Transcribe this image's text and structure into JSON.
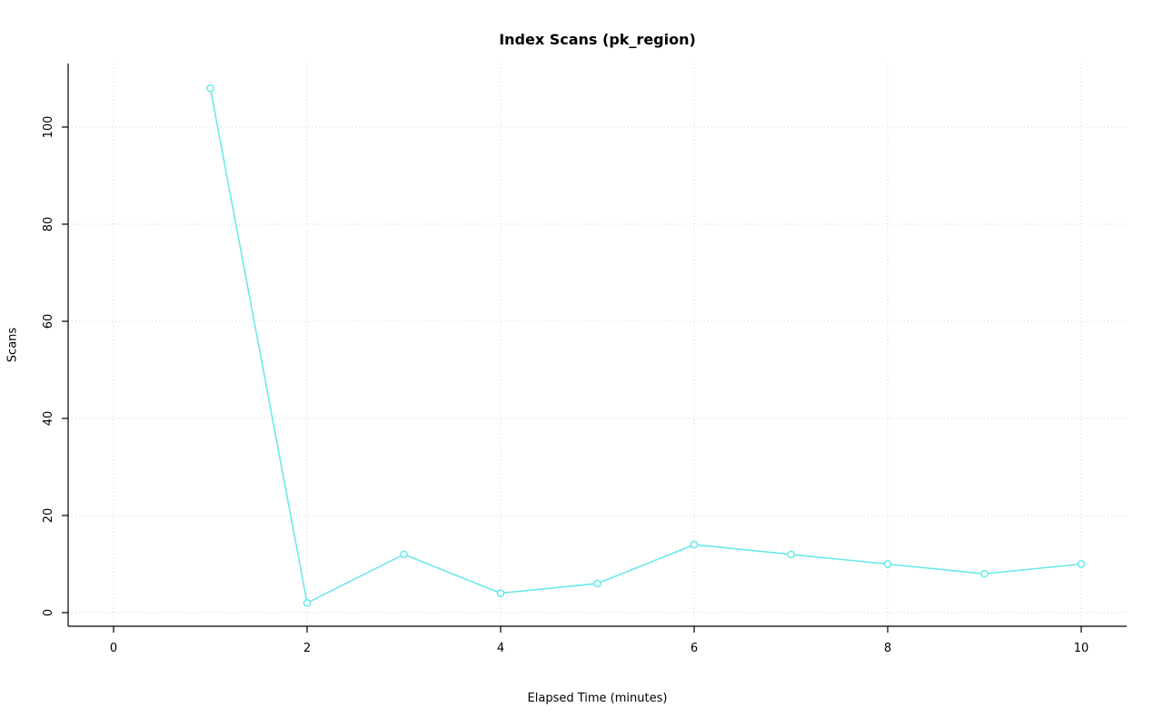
{
  "chart_data": {
    "type": "line",
    "title": "Index Scans (pk_region)",
    "xlabel": "Elapsed Time (minutes)",
    "ylabel": "Scans",
    "x": [
      1,
      2,
      3,
      4,
      5,
      6,
      7,
      8,
      9,
      10
    ],
    "values": [
      108,
      2,
      12,
      4,
      6,
      14,
      12,
      10,
      8,
      10
    ],
    "series_name": "Scans",
    "xlim": [
      0,
      10
    ],
    "ylim": [
      0,
      108
    ],
    "xticks": [
      0,
      2,
      4,
      6,
      8,
      10
    ],
    "yticks": [
      0,
      20,
      40,
      60,
      80,
      100
    ],
    "grid": true,
    "grid_style": "dotted",
    "legend_position": "none",
    "point_style": "open-circle",
    "colors": {
      "series": "#6ae9e9",
      "grid": "#d6d6d6",
      "axis": "#000000",
      "background": "#ffffff",
      "point_fill": "#ffffff"
    }
  }
}
